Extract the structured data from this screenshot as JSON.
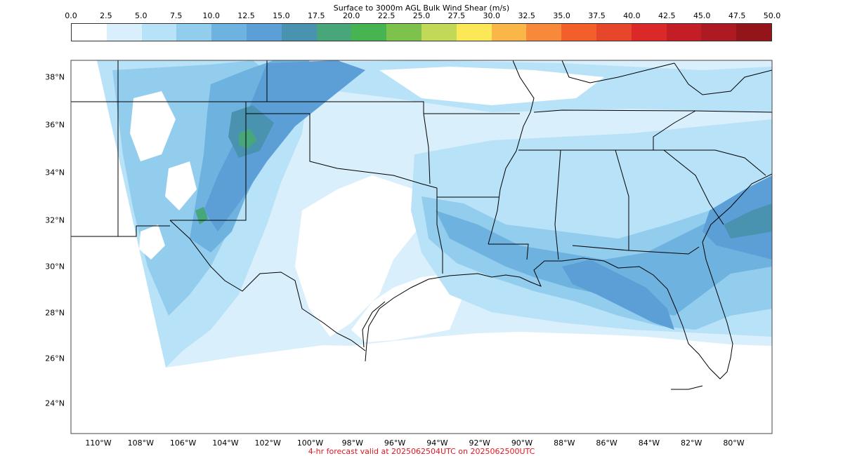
{
  "colorbar": {
    "title": "Surface to 3000m AGL Bulk Wind Shear (m/s)",
    "tick_labels": [
      "0.0",
      "2.5",
      "5.0",
      "7.5",
      "10.0",
      "12.5",
      "15.0",
      "17.5",
      "20.0",
      "22.5",
      "25.0",
      "27.5",
      "30.0",
      "32.5",
      "35.0",
      "37.5",
      "40.0",
      "42.5",
      "45.0",
      "47.5",
      "50.0"
    ],
    "colors": [
      "#ffffff",
      "#d9effc",
      "#b8e2f7",
      "#93cdee",
      "#6eb3e0",
      "#5b9fd6",
      "#4a93b0",
      "#48a77a",
      "#46b450",
      "#7dc24a",
      "#c2d957",
      "#fce857",
      "#fbb648",
      "#f8893b",
      "#f25f2b",
      "#e6472a",
      "#db2828",
      "#c31d25",
      "#ad1a22",
      "#931519"
    ]
  },
  "map": {
    "lat_labels": [
      "38°N",
      "36°N",
      "34°N",
      "32°N",
      "30°N",
      "28°N",
      "26°N",
      "24°N"
    ],
    "lon_labels": [
      "110°W",
      "108°W",
      "106°W",
      "104°W",
      "102°W",
      "100°W",
      "98°W",
      "96°W",
      "94°W",
      "92°W",
      "90°W",
      "88°W",
      "86°W",
      "84°W",
      "82°W",
      "80°W"
    ],
    "field_colors": {
      "white": "#ffffff",
      "level1": "#d9effc",
      "level2": "#b8e2f7",
      "level3": "#93cdee",
      "level4": "#6eb3e0",
      "level5": "#5b9fd6",
      "level6": "#4a93b0",
      "level7": "#48a77a"
    },
    "boundary_color": "#000000"
  },
  "footer": {
    "text": "4-hr forecast valid at 2025062504UTC on 2025062500UTC",
    "color": "#e8141e"
  }
}
